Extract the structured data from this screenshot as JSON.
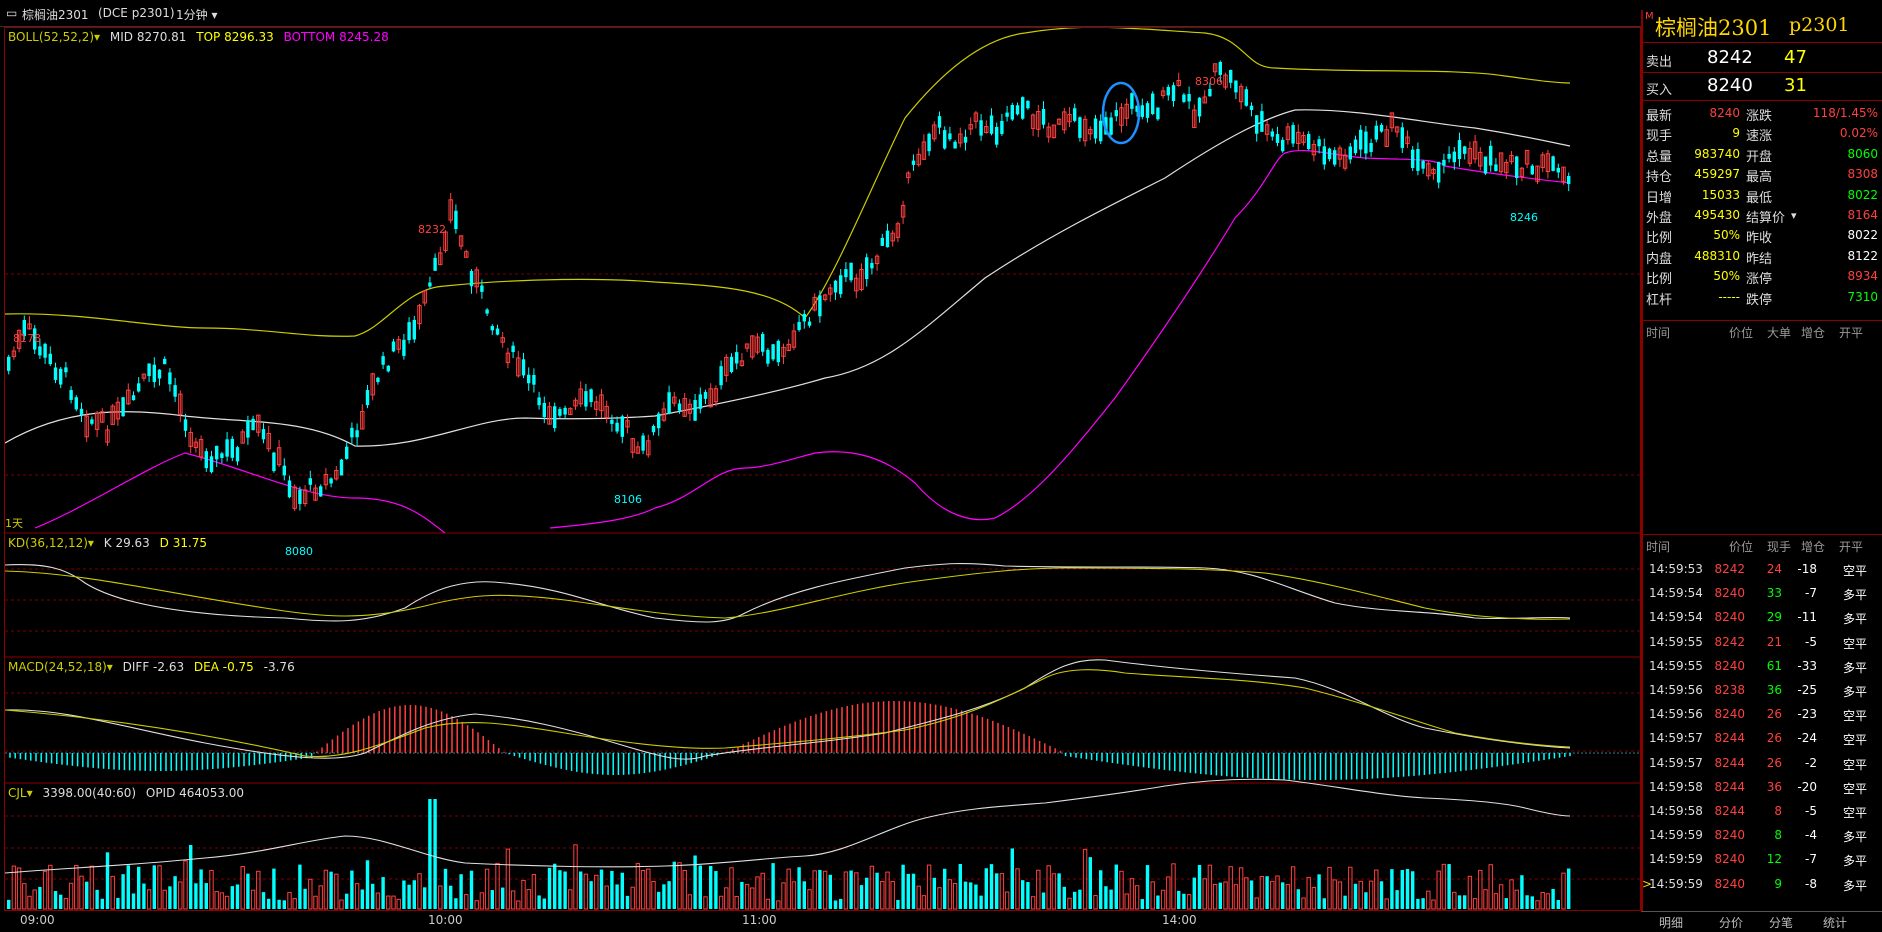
{
  "toolbar": {
    "symbol_label": "棕榈油2301",
    "market_code": "(DCE p2301)",
    "period": "1分钟"
  },
  "boll": {
    "label": "BOLL(52,52,2)",
    "mid": "MID 8270.81",
    "top": "TOP 8296.33",
    "bottom": "BOTTOM 8245.28"
  },
  "kd": {
    "label": "KD(36,12,12)",
    "k": "K 29.63",
    "d": "D 31.75"
  },
  "macd": {
    "label": "MACD(24,52,18)",
    "diff": "DIFF -2.63",
    "dea": "DEA -0.75",
    "macd": "-3.76"
  },
  "cjl": {
    "label": "CJL",
    "vol": "3398.00(40:60)",
    "opid": "OPID 464053.00"
  },
  "price_labels": {
    "p8178": "8178",
    "p8232": "8232",
    "p8080": "8080",
    "p8106": "8106",
    "p8306": "8306",
    "p8246": "8246",
    "day": "1天"
  },
  "time_axis": [
    "09:00",
    "10:00",
    "11:00",
    "14:00"
  ],
  "quote": {
    "title": "棕榈油2301",
    "code": "p2301",
    "sell_label": "卖出",
    "sell_price": "8242",
    "sell_qty": "47",
    "buy_label": "买入",
    "buy_price": "8240",
    "buy_qty": "31",
    "fields": [
      {
        "l": "最新",
        "v": "8240",
        "vc": "#ff4040",
        "l2": "涨跌",
        "v2": "118/1.45%",
        "v2c": "#ff4040"
      },
      {
        "l": "现手",
        "v": "9",
        "vc": "#ffff00",
        "l2": "速涨",
        "v2": "0.02%",
        "v2c": "#ff4040"
      },
      {
        "l": "总量",
        "v": "983740",
        "vc": "#ffff00",
        "l2": "开盘",
        "v2": "8060",
        "v2c": "#00ff00"
      },
      {
        "l": "持仓",
        "v": "459297",
        "vc": "#ffff00",
        "l2": "最高",
        "v2": "8308",
        "v2c": "#ff4040"
      },
      {
        "l": "日增",
        "v": "15033",
        "vc": "#ffff00",
        "l2": "最低",
        "v2": "8022",
        "v2c": "#00ff00"
      },
      {
        "l": "外盘",
        "v": "495430",
        "vc": "#ffff00",
        "l2": "结算价",
        "v2": "8164",
        "v2c": "#ff4040"
      },
      {
        "l": "比例",
        "v": "50%",
        "vc": "#ffff00",
        "l2": "昨收",
        "v2": "8022",
        "v2c": "#ffffff"
      },
      {
        "l": "内盘",
        "v": "488310",
        "vc": "#ffff00",
        "l2": "昨结",
        "v2": "8122",
        "v2c": "#ffffff"
      },
      {
        "l": "比例",
        "v": "50%",
        "vc": "#ffff00",
        "l2": "涨停",
        "v2": "8934",
        "v2c": "#ff4040"
      },
      {
        "l": "杠杆",
        "v": "-----",
        "vc": "#ffff00",
        "l2": "跌停",
        "v2": "7310",
        "v2c": "#00ff00"
      }
    ],
    "bigorder_header": [
      "时间",
      "价位",
      "大单",
      "增仓",
      "开平"
    ],
    "trade_header": [
      "时间",
      "价位",
      "现手",
      "增仓",
      "开平"
    ],
    "trades": [
      {
        "t": "14:59:53",
        "p": "8242",
        "q": "24",
        "qc": "#ff4040",
        "z": "-18",
        "k": "空平"
      },
      {
        "t": "14:59:54",
        "p": "8240",
        "q": "33",
        "qc": "#00ff00",
        "z": "-7",
        "k": "多平"
      },
      {
        "t": "14:59:54",
        "p": "8240",
        "q": "29",
        "qc": "#00ff00",
        "z": "-11",
        "k": "多平"
      },
      {
        "t": "14:59:55",
        "p": "8242",
        "q": "21",
        "qc": "#ff4040",
        "z": "-5",
        "k": "空平"
      },
      {
        "t": "14:59:55",
        "p": "8240",
        "q": "61",
        "qc": "#00ff00",
        "z": "-33",
        "k": "多平"
      },
      {
        "t": "14:59:56",
        "p": "8238",
        "q": "36",
        "qc": "#00ff00",
        "z": "-25",
        "k": "多平"
      },
      {
        "t": "14:59:56",
        "p": "8240",
        "q": "26",
        "qc": "#ff4040",
        "z": "-23",
        "k": "空平"
      },
      {
        "t": "14:59:57",
        "p": "8244",
        "q": "26",
        "qc": "#ff4040",
        "z": "-24",
        "k": "空平"
      },
      {
        "t": "14:59:57",
        "p": "8244",
        "q": "26",
        "qc": "#ff4040",
        "z": "-2",
        "k": "空平"
      },
      {
        "t": "14:59:58",
        "p": "8244",
        "q": "36",
        "qc": "#ff4040",
        "z": "-20",
        "k": "空平"
      },
      {
        "t": "14:59:58",
        "p": "8244",
        "q": "8",
        "qc": "#ff4040",
        "z": "-5",
        "k": "空平"
      },
      {
        "t": "14:59:59",
        "p": "8240",
        "q": "8",
        "qc": "#00ff00",
        "z": "-4",
        "k": "多平"
      },
      {
        "t": "14:59:59",
        "p": "8240",
        "q": "12",
        "qc": "#00ff00",
        "z": "-7",
        "k": "多平"
      },
      {
        "t": "14:59:59",
        "p": "8240",
        "q": "9",
        "qc": "#00ff00",
        "z": "-8",
        "k": "多平"
      }
    ]
  },
  "bottom_tabs": [
    "明细",
    "分价",
    "分笔",
    "统计"
  ],
  "colors": {
    "up": "#ff4040",
    "down": "#00ffff",
    "boll_top": "#cccc00",
    "boll_bottom": "#ff00ff",
    "mid": "#e0e0e0",
    "frame": "#8b0000"
  }
}
